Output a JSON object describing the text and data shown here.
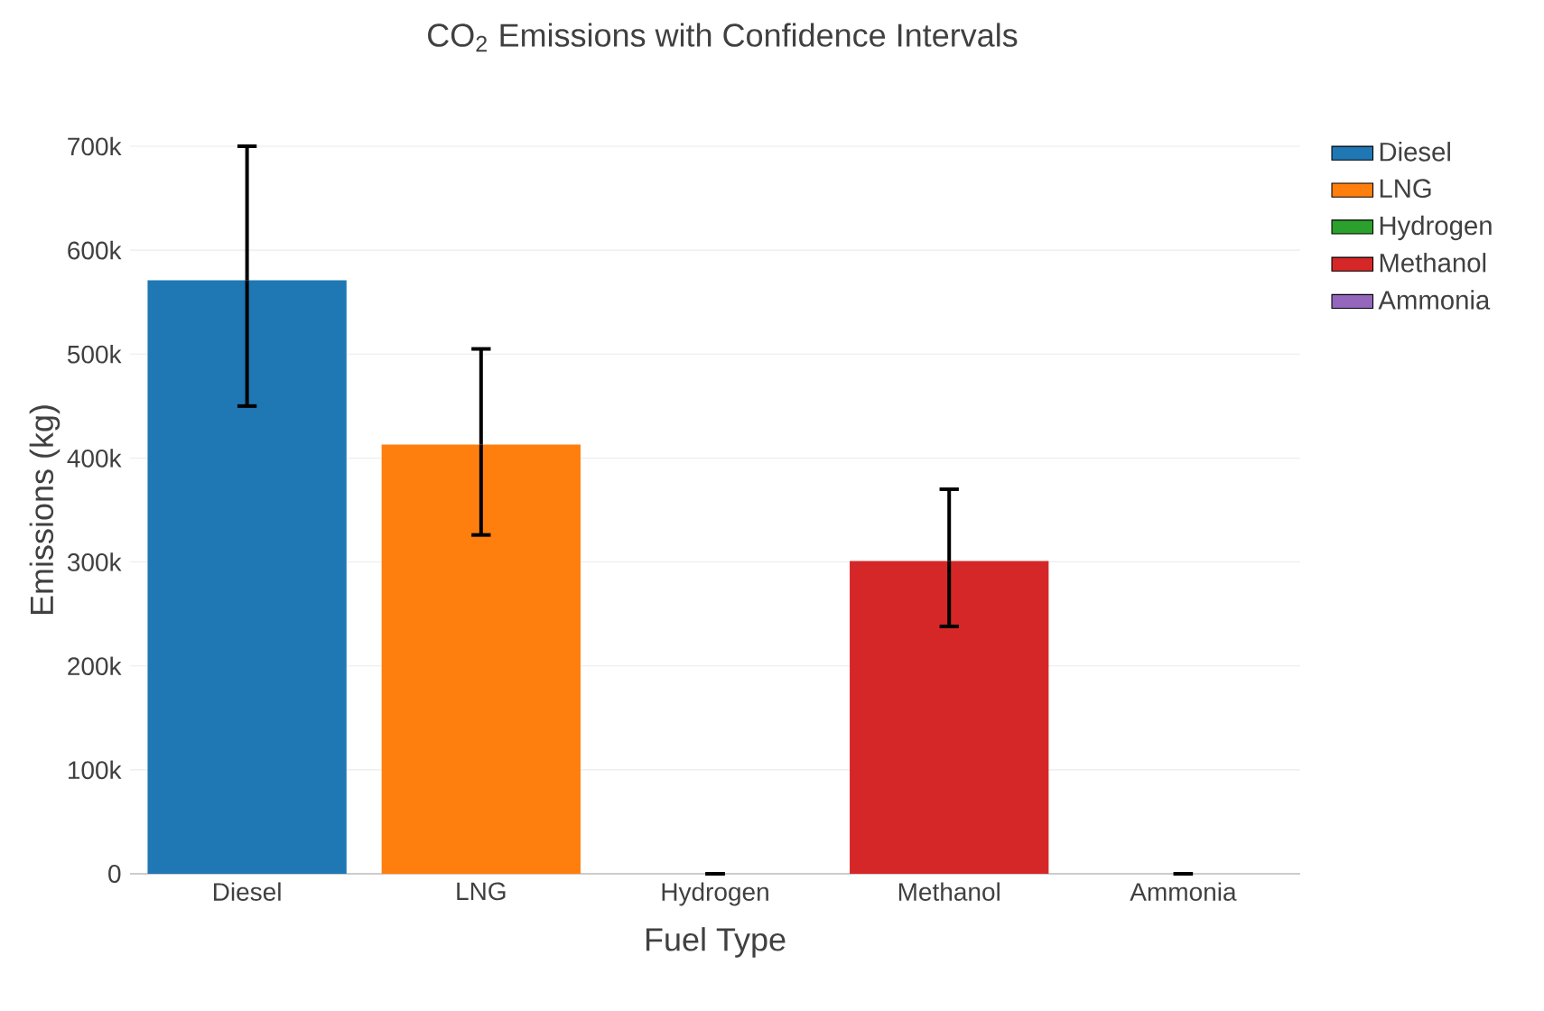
{
  "chart_data": {
    "type": "bar",
    "title": "CO$_{2}$ Emissions with Confidence Intervals",
    "xlabel": "Fuel Type",
    "ylabel": "Emissions (kg)",
    "categories": [
      "Diesel",
      "LNG",
      "Hydrogen",
      "Methanol",
      "Ammonia"
    ],
    "series": [
      {
        "name": "Diesel",
        "color": "#1f77b4",
        "values": [
          571000,
          null,
          null,
          null,
          null
        ],
        "errors": [
          [
            450000,
            700000
          ],
          null,
          null,
          null,
          null
        ]
      },
      {
        "name": "LNG",
        "color": "#ff7f0e",
        "values": [
          null,
          413000,
          null,
          null,
          null
        ],
        "errors": [
          null,
          [
            326000,
            505000
          ],
          null,
          null,
          null
        ]
      },
      {
        "name": "Hydrogen",
        "color": "#2ca02c",
        "values": [
          null,
          null,
          0,
          null,
          null
        ],
        "errors": [
          null,
          null,
          [
            0,
            0
          ],
          null,
          null
        ]
      },
      {
        "name": "Methanol",
        "color": "#d62728",
        "values": [
          null,
          null,
          null,
          301000,
          null
        ],
        "errors": [
          null,
          null,
          null,
          [
            238000,
            370000
          ],
          null
        ]
      },
      {
        "name": "Ammonia",
        "color": "#9467bd",
        "values": [
          null,
          null,
          null,
          null,
          0
        ],
        "errors": [
          null,
          null,
          null,
          null,
          [
            0,
            0
          ]
        ]
      }
    ],
    "ylim": [
      0,
      700000
    ],
    "yticks": [
      0,
      {
        "value": 100000,
        "label": "100k"
      },
      {
        "value": 200000,
        "label": "200k"
      },
      {
        "value": 300000,
        "label": "300k"
      },
      {
        "value": 400000,
        "label": "400k"
      },
      {
        "value": 500000,
        "label": "500k"
      },
      {
        "value": 600000,
        "label": "600k"
      },
      {
        "value": 700000,
        "label": "700k"
      }
    ],
    "grid": "y",
    "legend": "top right"
  }
}
